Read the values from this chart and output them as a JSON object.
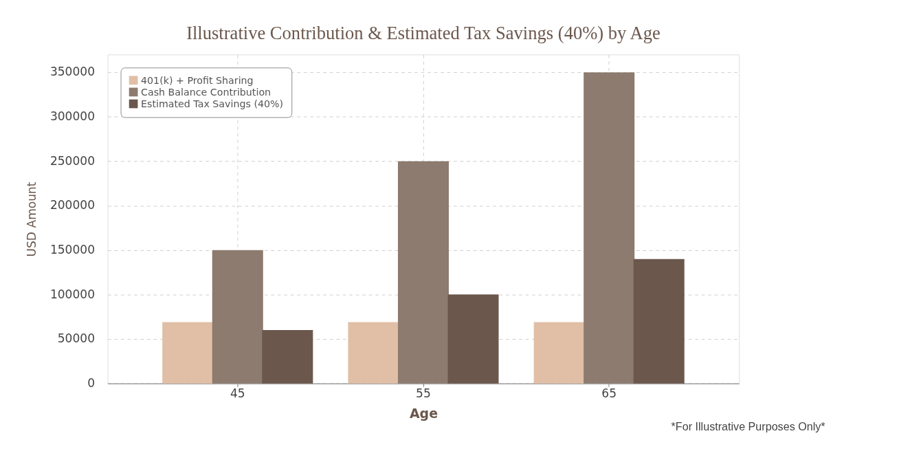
{
  "chart_data": {
    "type": "bar",
    "title": "Illustrative Contribution & Estimated Tax Savings (40%) by Age",
    "xlabel": "Age",
    "ylabel": "USD Amount",
    "categories": [
      "45",
      "55",
      "65"
    ],
    "series": [
      {
        "name": "401(k) + Profit Sharing",
        "color": "#e0bfa6",
        "values": [
          69000,
          69000,
          69000
        ]
      },
      {
        "name": "Cash Balance Contribution",
        "color": "#8c7b6e",
        "values": [
          150000,
          250000,
          350000
        ]
      },
      {
        "name": "Estimated Tax Savings (40%)",
        "color": "#6b574c",
        "values": [
          60000,
          100000,
          140000
        ]
      }
    ],
    "ylim": [
      0,
      370000
    ],
    "yticks": [
      0,
      50000,
      100000,
      150000,
      200000,
      250000,
      300000,
      350000
    ],
    "grid": true,
    "legend": "top left",
    "annotations": [
      "*For Illustrative Purposes Only*"
    ]
  }
}
